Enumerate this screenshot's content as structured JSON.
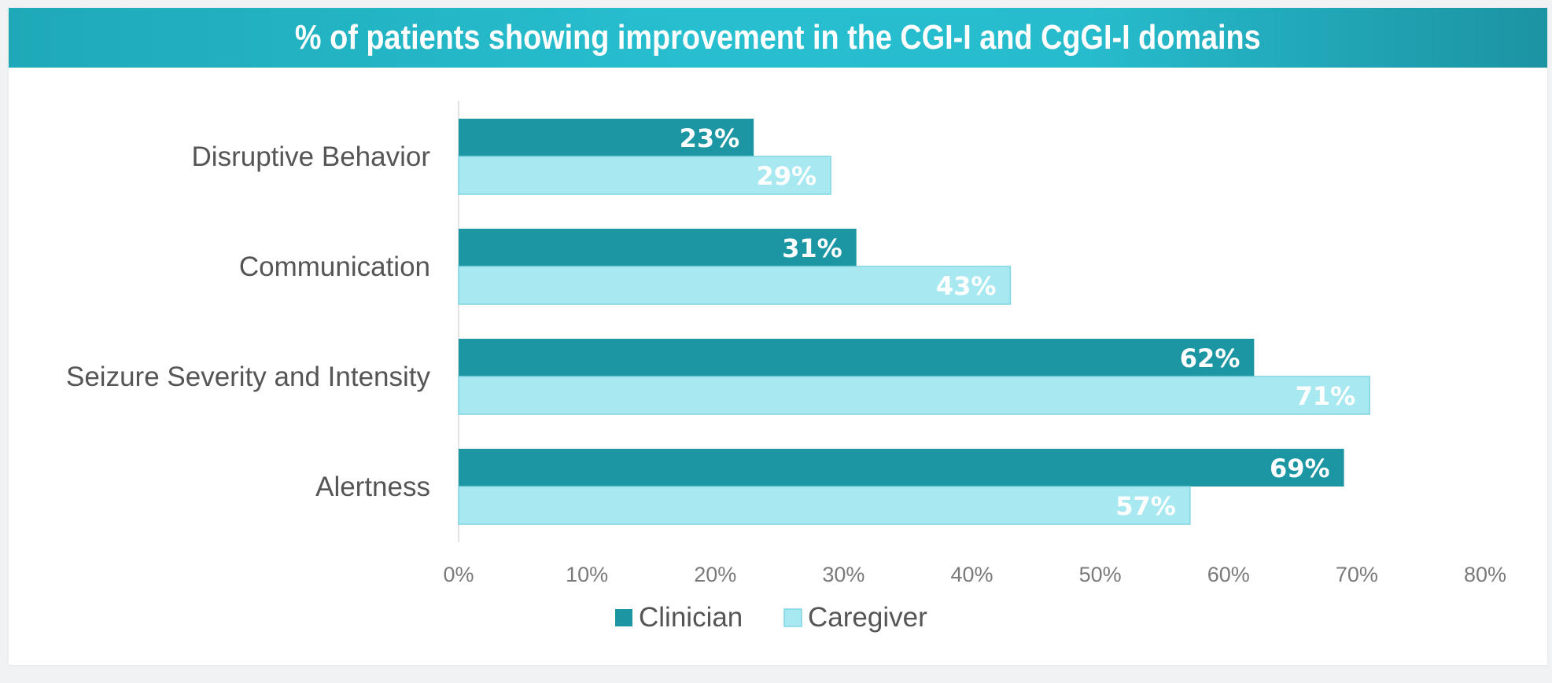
{
  "title": "% of patients showing improvement in the CGI-I and CgGI-I domains",
  "colors": {
    "clinician": "#1c96a2",
    "caregiver": "#a8e8f0",
    "caregiver_border": "#7fd6e3",
    "title_bg": "#26bccd",
    "axis_line": "#d9d9d9"
  },
  "chart_data": {
    "type": "bar",
    "orientation": "horizontal",
    "title": "% of patients showing improvement in the CGI-I and CgGI-I domains",
    "categories": [
      "Disruptive Behavior",
      "Communication",
      "Seizure Severity and Intensity",
      "Alertness"
    ],
    "series": [
      {
        "name": "Clinician",
        "values": [
          23,
          31,
          62,
          69
        ],
        "labels": [
          "23%",
          "31%",
          "62%",
          "69%"
        ],
        "color": "#1c96a2"
      },
      {
        "name": "Caregiver",
        "values": [
          29,
          43,
          71,
          57
        ],
        "labels": [
          "29%",
          "43%",
          "71%",
          "57%"
        ],
        "color": "#a8e8f0"
      }
    ],
    "xlim": [
      0,
      80
    ],
    "xticks": [
      0,
      10,
      20,
      30,
      40,
      50,
      60,
      70,
      80
    ],
    "xtick_labels": [
      "0%",
      "10%",
      "20%",
      "30%",
      "40%",
      "50%",
      "60%",
      "70%",
      "80%"
    ],
    "xlabel": "",
    "ylabel": "",
    "grid": false,
    "legend_position": "bottom"
  }
}
